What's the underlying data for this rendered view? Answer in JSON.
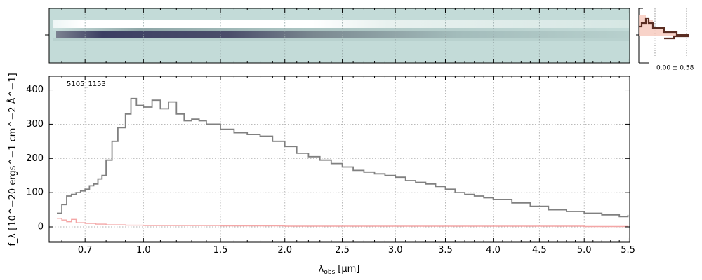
{
  "chart_data": [
    {
      "type": "heatmap",
      "description_visible": "2D spectrum image",
      "xlim": [
        0.55,
        5.52
      ],
      "x_scale": "reciprocal-stretched",
      "y_ticks_labels": [],
      "colors": {
        "background": "#c3dbd8",
        "bright": "#ffffff",
        "dark": "#3c3f63"
      }
    },
    {
      "type": "line",
      "annotation": "0.00 ± 0.58",
      "colors": {
        "profile": "#5a2d22",
        "fill": "#f6c8bb"
      }
    },
    {
      "type": "line",
      "label": "5105_1153",
      "xlabel_main": "λ",
      "xlabel_sub": "obs",
      "xlabel_unit": "[μm]",
      "ylabel": "f_λ [10^−20 ergs^−1 cm^−2 Å^−1]",
      "xlim": [
        0.55,
        5.52
      ],
      "ylim": [
        -45,
        440
      ],
      "x_ticks": [
        0.7,
        1.0,
        1.5,
        2.0,
        2.5,
        3.0,
        3.5,
        4.0,
        4.5,
        5.0,
        5.5
      ],
      "x_tick_labels": [
        "0.7",
        "1.0",
        "1.5",
        "2.0",
        "2.5",
        "3.0",
        "3.5",
        "4.0",
        "4.5",
        "5.0",
        "5.5"
      ],
      "y_ticks": [
        0,
        100,
        200,
        300,
        400
      ],
      "y_tick_labels": [
        "0",
        "100",
        "200",
        "300",
        "400"
      ],
      "grid": true,
      "series": [
        {
          "color": "#808080",
          "x": [
            0.58,
            0.6,
            0.62,
            0.64,
            0.66,
            0.68,
            0.7,
            0.72,
            0.74,
            0.76,
            0.78,
            0.8,
            0.83,
            0.86,
            0.9,
            0.93,
            0.96,
            1.0,
            1.05,
            1.1,
            1.15,
            1.2,
            1.25,
            1.3,
            1.35,
            1.4,
            1.5,
            1.6,
            1.7,
            1.8,
            1.9,
            2.0,
            2.1,
            2.2,
            2.3,
            2.4,
            2.5,
            2.6,
            2.7,
            2.8,
            2.9,
            3.0,
            3.1,
            3.2,
            3.3,
            3.4,
            3.5,
            3.6,
            3.7,
            3.8,
            3.9,
            4.0,
            4.2,
            4.4,
            4.6,
            4.8,
            5.0,
            5.2,
            5.4,
            5.5
          ],
          "y": [
            40,
            65,
            90,
            95,
            100,
            105,
            110,
            120,
            125,
            140,
            150,
            195,
            250,
            290,
            330,
            375,
            355,
            350,
            370,
            345,
            365,
            330,
            310,
            315,
            310,
            300,
            285,
            275,
            270,
            265,
            250,
            235,
            215,
            205,
            195,
            185,
            175,
            165,
            160,
            155,
            150,
            145,
            135,
            130,
            125,
            118,
            110,
            100,
            95,
            90,
            85,
            80,
            70,
            60,
            50,
            45,
            40,
            35,
            30,
            35
          ]
        },
        {
          "color": "#f4a6a6",
          "x": [
            0.58,
            0.6,
            0.62,
            0.64,
            0.66,
            0.7,
            0.75,
            0.8,
            0.9,
            1.0,
            1.5,
            2.0,
            3.0,
            4.0,
            5.0,
            5.5
          ],
          "y": [
            25,
            20,
            15,
            22,
            12,
            10,
            8,
            6,
            5,
            4,
            3,
            2,
            2,
            2,
            1,
            3
          ]
        }
      ]
    }
  ]
}
